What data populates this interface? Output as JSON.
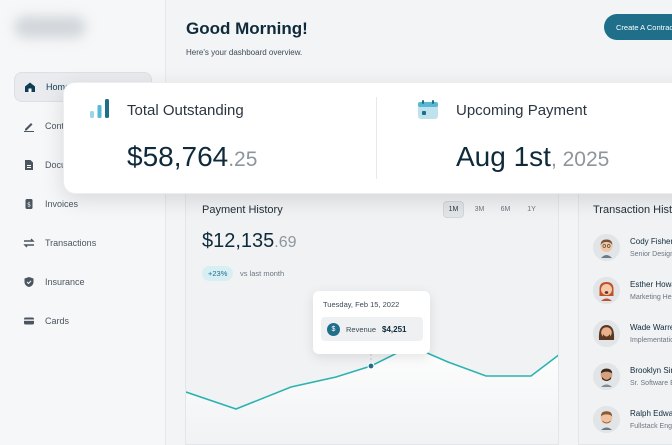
{
  "sidebar": {
    "items": [
      {
        "label": "Home",
        "icon": "home-icon",
        "active": true
      },
      {
        "label": "Contracts",
        "icon": "pen-icon"
      },
      {
        "label": "Documents",
        "icon": "document-icon"
      },
      {
        "label": "Invoices",
        "icon": "invoice-icon"
      },
      {
        "label": "Transactions",
        "icon": "transactions-icon"
      },
      {
        "label": "Insurance",
        "icon": "shield-icon"
      },
      {
        "label": "Cards",
        "icon": "card-icon"
      }
    ]
  },
  "header": {
    "greeting": "Good Morning!",
    "subtitle": "Here's your dashboard overview.",
    "cta_label": "Create A Contract"
  },
  "summary": {
    "outstanding": {
      "label": "Total Outstanding",
      "value_main": "$58,764",
      "value_dim": ".25"
    },
    "upcoming": {
      "label": "Upcoming Payment",
      "value_main": "Aug 1st",
      "value_dim": ", 2025"
    }
  },
  "payment_history": {
    "title": "Payment History",
    "ranges": [
      "1M",
      "3M",
      "6M",
      "1Y"
    ],
    "active_range": "1M",
    "value_main": "$12,135",
    "value_dim": ".69",
    "change": "+23%",
    "change_note": "vs last month",
    "tooltip": {
      "date": "Tuesday, Feb 15, 2022",
      "label": "Revenue",
      "value": "$4,251"
    },
    "line_color": "#2bb3b1"
  },
  "transactions": {
    "title": "Transaction History",
    "items": [
      {
        "name": "Cody Fisher",
        "role": "Senior Designer"
      },
      {
        "name": "Esther Howard",
        "role": "Marketing Head"
      },
      {
        "name": "Wade Warren",
        "role": "Implementation"
      },
      {
        "name": "Brooklyn Simmons",
        "role": "Sr. Software Engineer"
      },
      {
        "name": "Ralph Edwards",
        "role": "Fullstack Engineer"
      }
    ]
  }
}
